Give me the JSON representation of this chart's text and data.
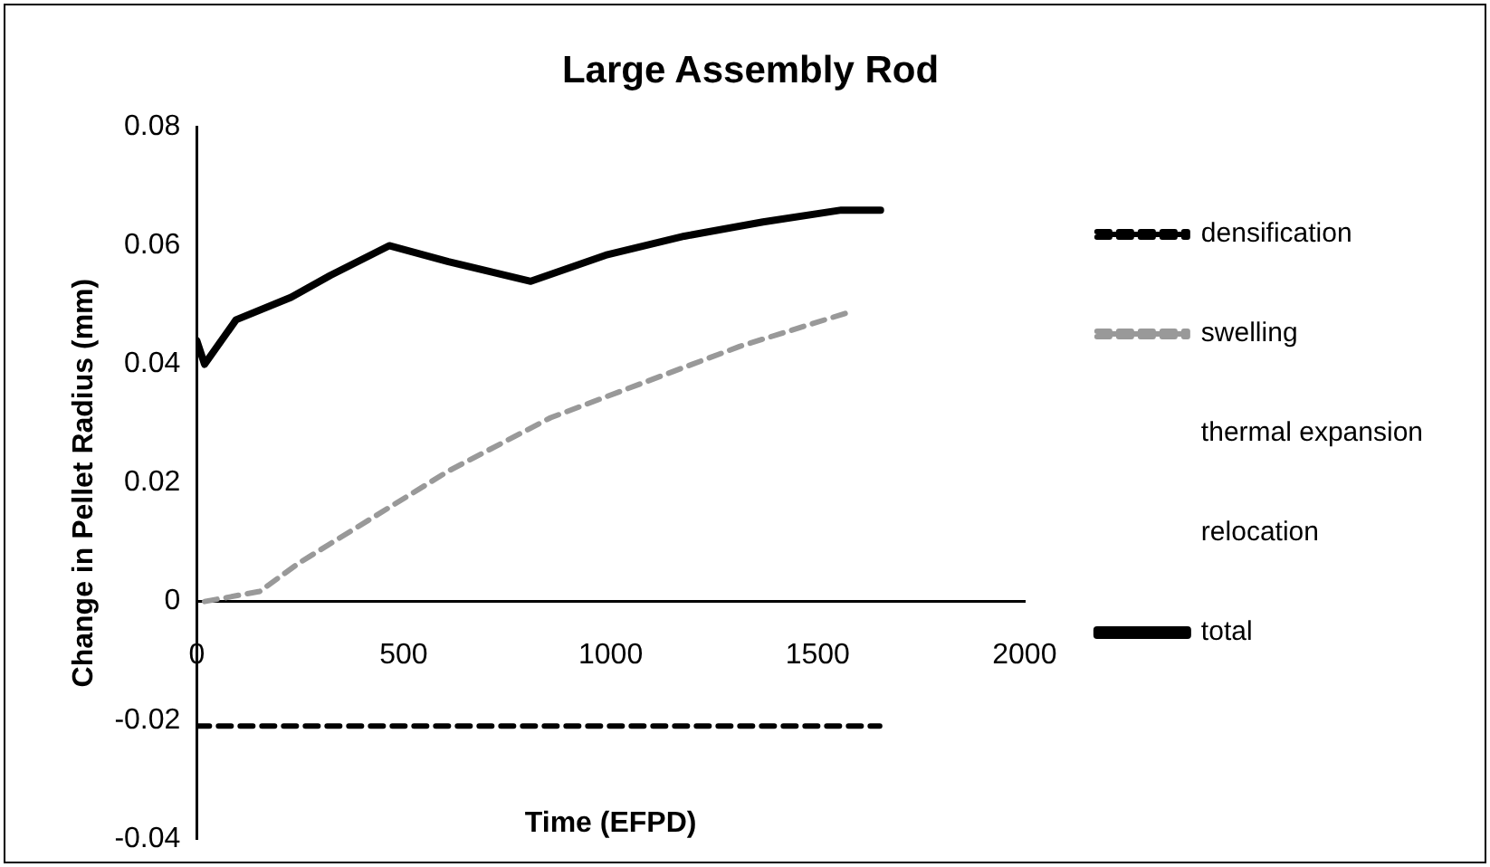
{
  "chart_data": {
    "type": "line",
    "title": "Large Assembly Rod",
    "xlabel": "Time (EFPD)",
    "ylabel": "Change in Pellet Radius (mm)",
    "xlim": [
      0,
      2000
    ],
    "xticks": [
      0,
      500,
      1000,
      1500,
      2000
    ],
    "ylim": [
      -0.04,
      0.08
    ],
    "yticks": [
      -0.04,
      -0.02,
      0,
      0.02,
      0.04,
      0.06,
      0.08
    ],
    "grid": false,
    "legend": "right",
    "marker": "none",
    "series": [
      {
        "name": "densification",
        "color": "#000000",
        "line_style": "dashed",
        "x": [
          0,
          1650
        ],
        "values": [
          -0.021,
          -0.021
        ]
      },
      {
        "name": "swelling",
        "color": "#999999",
        "line_style": "dashed",
        "x": [
          19,
          152,
          247,
          608,
          855,
          1083,
          1311,
          1586
        ],
        "values": [
          0,
          0.0017,
          0.0065,
          0.022,
          0.031,
          0.037,
          0.043,
          0.049
        ]
      },
      {
        "name": "thermal expansion"
      },
      {
        "name": "relocation"
      },
      {
        "name": "total",
        "color": "#000000",
        "line_style": "solid",
        "x": [
          0,
          19,
          95,
          228,
          323,
          465,
          608,
          807,
          988,
          1178,
          1368,
          1557,
          1652
        ],
        "values": [
          0.044,
          0.04,
          0.0475,
          0.0513,
          0.055,
          0.06,
          0.0573,
          0.054,
          0.0584,
          0.0616,
          0.064,
          0.066,
          0.066
        ]
      }
    ]
  }
}
